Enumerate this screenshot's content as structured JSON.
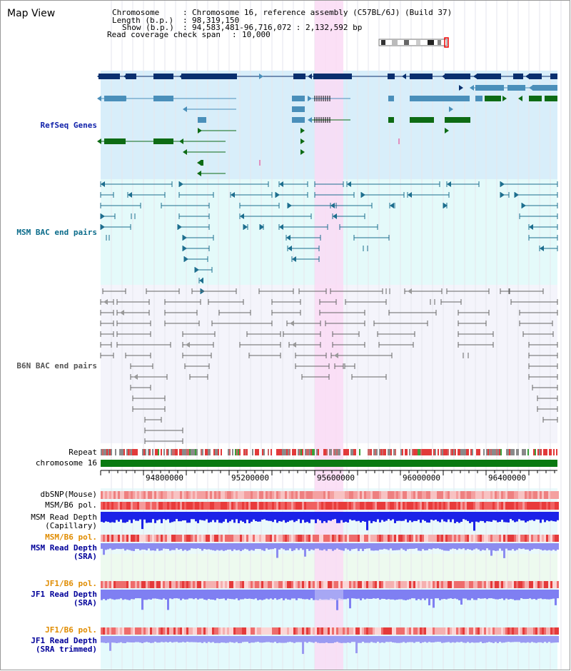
{
  "title": "Map View",
  "header": {
    "chromosome_label": "Chromosome",
    "chromosome_value": "Chromosome 16, reference assembly (C57BL/6J) (Build 37)",
    "length_label": "Length (b.p.)",
    "length_value": "98,319,150",
    "show_label": "Show (b.p.)",
    "show_value": "94,583,481-96,716,072 : 2,132,592 bp",
    "coverage_label": "Read coverage check span",
    "coverage_value": "10,000"
  },
  "tracks": {
    "refseq": "RefSeq Genes",
    "msm_bac": "MSM BAC end pairs",
    "b6n_bac": "B6N BAC end pairs",
    "repeat": "Repeat",
    "chromosome": "chromosome 16",
    "dbsnp": "dbSNP(Mouse)",
    "msm_b6_pol": "MSM/B6 pol.",
    "msm_depth_cap_1": "MSM Read Depth",
    "msm_depth_cap_2": "(Capillary)",
    "msm_b6_pol_2": "MSM/B6 pol.",
    "msm_depth_sra_1": "MSM Read Depth",
    "msm_depth_sra_2": "(SRA)",
    "jf1_b6_pol": "JF1/B6 pol.",
    "jf1_depth_sra_1": "JF1 Read Depth",
    "jf1_depth_sra_2": "(SRA)",
    "jf1_b6_pol_2": "JF1/B6 pol.",
    "jf1_depth_trim_1": "JF1 Read Depth",
    "jf1_depth_trim_2": "(SRA trimmed)"
  },
  "axis": {
    "ticks": [
      "94800000",
      "95200000",
      "95600000",
      "96000000",
      "96400000"
    ]
  },
  "colors": {
    "refseq_bg": "#d8eefa",
    "msm_bg": "#e4fafa",
    "b6n_bg": "#f4f4fb",
    "highlight": "#fadaf5",
    "gene_dark": "#0a2f6e",
    "gene_mid": "#4a8fba",
    "gene_green": "#0d6b14",
    "msm_line": "#1d6e8e",
    "b6n_line": "#666666",
    "chrom_green": "#0a7a12",
    "orange_text": "#e08c00",
    "navy_text": "#000099"
  }
}
